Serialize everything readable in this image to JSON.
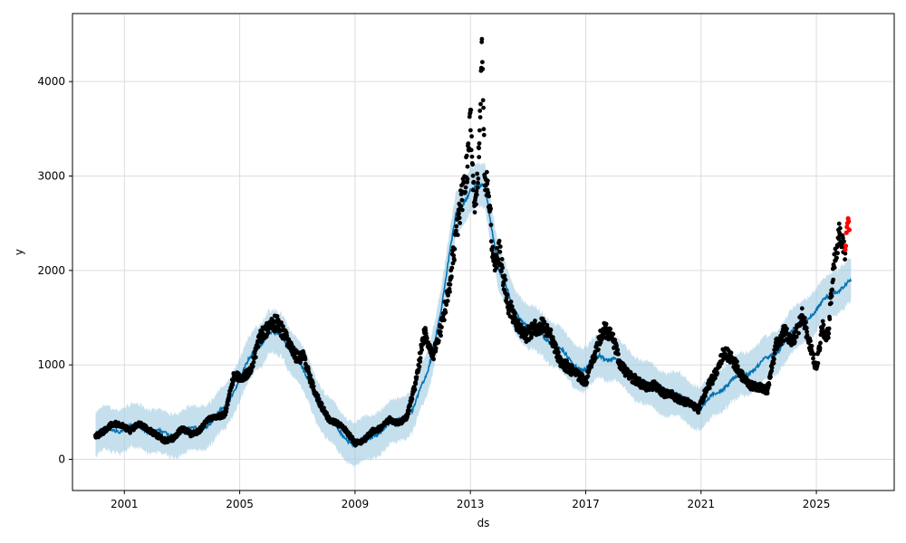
{
  "chart_data": {
    "type": "line",
    "xlabel": "ds",
    "ylabel": "y",
    "x_range": [
      1999.2,
      2027.7
    ],
    "y_range": [
      -330,
      4720
    ],
    "x_ticks": [
      2001,
      2005,
      2009,
      2013,
      2017,
      2021,
      2025
    ],
    "x_tick_labels": [
      "2001",
      "2005",
      "2009",
      "2013",
      "2017",
      "2021",
      "2025"
    ],
    "y_ticks": [
      0,
      1000,
      2000,
      3000,
      4000
    ],
    "y_tick_labels": [
      "0",
      "1000",
      "2000",
      "3000",
      "4000"
    ],
    "grid": true,
    "colors": {
      "observed": "#000000",
      "forecast_points": "#ff0000",
      "trend_line": "#0072b2",
      "uncertainty_band": "#9ecae1"
    },
    "series": [
      {
        "kind": "forecast",
        "x": [
          2000.0,
          2000.5,
          2001.0,
          2001.5,
          2002.0,
          2002.5,
          2003.0,
          2003.5,
          2004.0,
          2004.5,
          2005.0,
          2005.5,
          2006.0,
          2006.5,
          2007.0,
          2007.5,
          2008.0,
          2008.5,
          2009.0,
          2009.5,
          2010.0,
          2010.5,
          2011.0,
          2011.5,
          2012.0,
          2012.5,
          2013.0,
          2013.5,
          2014.0,
          2014.5,
          2015.0,
          2015.5,
          2016.0,
          2016.5,
          2017.0,
          2017.5,
          2018.0,
          2018.5,
          2019.0,
          2019.5,
          2020.0,
          2020.5,
          2021.0,
          2021.5,
          2022.0,
          2022.5,
          2023.0,
          2023.5,
          2024.0,
          2024.5,
          2025.0,
          2025.5,
          2026.0,
          2026.2
        ],
        "values": [
          270,
          330,
          310,
          360,
          300,
          260,
          280,
          330,
          390,
          550,
          850,
          1150,
          1340,
          1300,
          1050,
          750,
          450,
          280,
          150,
          230,
          330,
          420,
          520,
          900,
          1600,
          2600,
          2850,
          2900,
          2000,
          1600,
          1400,
          1320,
          1200,
          1020,
          950,
          1100,
          1060,
          920,
          820,
          720,
          700,
          620,
          540,
          700,
          820,
          900,
          1000,
          1100,
          1300,
          1450,
          1580,
          1750,
          1850,
          1870
        ],
        "band_half_width": 230
      },
      {
        "kind": "observed",
        "x": [
          2000.0,
          2000.3,
          2000.6,
          2000.9,
          2001.2,
          2001.5,
          2001.8,
          2002.1,
          2002.4,
          2002.7,
          2003.0,
          2003.3,
          2003.6,
          2003.9,
          2004.2,
          2004.5,
          2004.8,
          2005.1,
          2005.4,
          2005.7,
          2006.0,
          2006.3,
          2006.6,
          2006.9,
          2007.2,
          2007.5,
          2007.8,
          2008.1,
          2008.4,
          2008.7,
          2009.0,
          2009.3,
          2009.6,
          2009.9,
          2010.2,
          2010.5,
          2010.8,
          2011.1,
          2011.4,
          2011.7,
          2012.0,
          2012.3,
          2012.6,
          2012.9,
          2013.0,
          2013.1,
          2013.2,
          2013.3,
          2013.4,
          2013.5,
          2013.6,
          2013.8,
          2014.0,
          2014.3,
          2014.6,
          2014.9,
          2015.2,
          2015.5,
          2015.8,
          2016.1,
          2016.4,
          2016.7,
          2017.0,
          2017.3,
          2017.6,
          2017.9,
          2018.2,
          2018.5,
          2018.8,
          2019.1,
          2019.4,
          2019.7,
          2020.0,
          2020.3,
          2020.6,
          2020.9,
          2021.2,
          2021.5,
          2021.8,
          2022.1,
          2022.4,
          2022.7,
          2023.0,
          2023.3,
          2023.6,
          2023.9,
          2024.2,
          2024.5,
          2024.8,
          2025.0,
          2025.2,
          2025.4,
          2025.6,
          2025.8,
          2026.0
        ],
        "values": [
          240,
          300,
          380,
          360,
          300,
          380,
          320,
          260,
          200,
          220,
          330,
          270,
          300,
          430,
          440,
          480,
          900,
          860,
          950,
          1300,
          1400,
          1450,
          1300,
          1100,
          1080,
          800,
          580,
          420,
          380,
          300,
          170,
          200,
          300,
          330,
          420,
          380,
          450,
          800,
          1350,
          1100,
          1400,
          1900,
          2600,
          3100,
          3700,
          2850,
          2700,
          3200,
          4450,
          2900,
          2950,
          2100,
          2200,
          1650,
          1450,
          1300,
          1380,
          1420,
          1300,
          1050,
          970,
          900,
          820,
          1100,
          1380,
          1320,
          1000,
          880,
          830,
          760,
          780,
          700,
          680,
          620,
          600,
          520,
          750,
          900,
          1150,
          1050,
          900,
          780,
          760,
          730,
          1200,
          1350,
          1250,
          1520,
          1200,
          960,
          1400,
          1300,
          2050,
          2400,
          2180
        ]
      },
      {
        "kind": "forecast_points",
        "x": [
          2026.0,
          2026.02,
          2026.04,
          2026.06,
          2026.08,
          2026.1,
          2026.12,
          2026.14
        ],
        "values": [
          2220,
          2260,
          2400,
          2460,
          2500,
          2550,
          2520,
          2430
        ]
      }
    ]
  }
}
